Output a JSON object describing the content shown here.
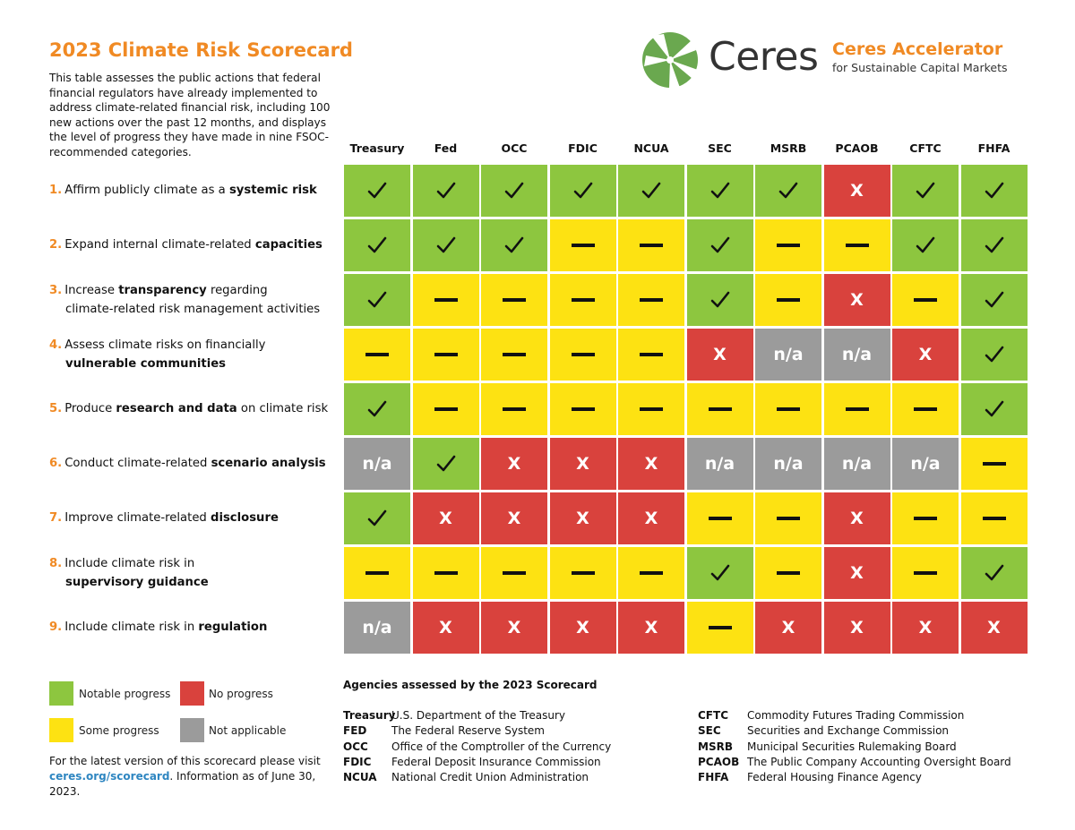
{
  "title": "2023 Climate Risk Scorecard",
  "intro": "This table assesses the public actions that federal financial regulators have already implemented to address climate-related financial risk, including 100 new actions over the past 12 months, and displays the level of progress they have made in nine FSOC-recommended categories.",
  "logo": {
    "word": "Ceres",
    "accelerator_title": "Ceres Accelerator",
    "accelerator_sub": "for Sustainable Capital Markets"
  },
  "colors": {
    "green": "#8dc63f",
    "yellow": "#fde212",
    "red": "#d9423d",
    "gray": "#9b9b9b",
    "orange": "#f08a24",
    "link": "#2e86c1"
  },
  "columns": [
    "Treasury",
    "Fed",
    "OCC",
    "FDIC",
    "NCUA",
    "SEC",
    "MSRB",
    "PCAOB",
    "CFTC",
    "FHFA"
  ],
  "rows": [
    {
      "num": "1.",
      "l1_pre": "Affirm publicly climate as a ",
      "l1_bold": "systemic risk",
      "l1_post": "",
      "l2_pre": "",
      "l2_bold": "",
      "l2_post": "",
      "cells": [
        "g",
        "g",
        "g",
        "g",
        "g",
        "g",
        "g",
        "r",
        "g",
        "g"
      ]
    },
    {
      "num": "2.",
      "l1_pre": "Expand internal climate-related ",
      "l1_bold": "capacities",
      "l1_post": "",
      "l2_pre": "",
      "l2_bold": "",
      "l2_post": "",
      "cells": [
        "g",
        "g",
        "g",
        "y",
        "y",
        "g",
        "y",
        "y",
        "g",
        "g"
      ]
    },
    {
      "num": "3.",
      "l1_pre": "Increase ",
      "l1_bold": "transparency",
      "l1_post": " regarding",
      "l2_pre": "climate-related risk management activities",
      "l2_bold": "",
      "l2_post": "",
      "cells": [
        "g",
        "y",
        "y",
        "y",
        "y",
        "g",
        "y",
        "r",
        "y",
        "g"
      ]
    },
    {
      "num": "4.",
      "l1_pre": "Assess climate risks on financially",
      "l1_bold": "",
      "l1_post": "",
      "l2_pre": "",
      "l2_bold": "vulnerable communities",
      "l2_post": "",
      "cells": [
        "y",
        "y",
        "y",
        "y",
        "y",
        "r",
        "n",
        "n",
        "r",
        "g"
      ]
    },
    {
      "num": "5.",
      "l1_pre": "Produce ",
      "l1_bold": "research and data",
      "l1_post": " on climate risk",
      "l2_pre": "",
      "l2_bold": "",
      "l2_post": "",
      "cells": [
        "g",
        "y",
        "y",
        "y",
        "y",
        "y",
        "y",
        "y",
        "y",
        "g"
      ]
    },
    {
      "num": "6.",
      "l1_pre": "Conduct climate-related ",
      "l1_bold": "scenario analysis",
      "l1_post": "",
      "l2_pre": "",
      "l2_bold": "",
      "l2_post": "",
      "cells": [
        "n",
        "g",
        "r",
        "r",
        "r",
        "n",
        "n",
        "n",
        "n",
        "y"
      ]
    },
    {
      "num": "7.",
      "l1_pre": "Improve climate-related ",
      "l1_bold": "disclosure",
      "l1_post": "",
      "l2_pre": "",
      "l2_bold": "",
      "l2_post": "",
      "cells": [
        "g",
        "r",
        "r",
        "r",
        "r",
        "y",
        "y",
        "r",
        "y",
        "y"
      ]
    },
    {
      "num": "8.",
      "l1_pre": "Include climate risk in",
      "l1_bold": "",
      "l1_post": "",
      "l2_pre": "",
      "l2_bold": "supervisory guidance",
      "l2_post": "",
      "cells": [
        "y",
        "y",
        "y",
        "y",
        "y",
        "g",
        "y",
        "r",
        "y",
        "g"
      ]
    },
    {
      "num": "9.",
      "l1_pre": "Include climate risk in ",
      "l1_bold": "regulation",
      "l1_post": "",
      "l2_pre": "",
      "l2_bold": "",
      "l2_post": "",
      "cells": [
        "n",
        "r",
        "r",
        "r",
        "r",
        "y",
        "r",
        "r",
        "r",
        "r"
      ]
    }
  ],
  "cell_symbols": {
    "r": "X",
    "n": "n/a"
  },
  "legend": {
    "notable": "Notable progress",
    "no": "No progress",
    "some": "Some progress",
    "na": "Not applicable"
  },
  "footer": {
    "text": "For the latest version of this scorecard please visit",
    "link": "ceres.org/scorecard",
    "suffix": ". Information as of June 30, 2023."
  },
  "agencies_title": "Agencies assessed by the 2023 Scorecard",
  "agencies_left": [
    {
      "abbr": "Treasury",
      "name": "U.S. Department of the Treasury"
    },
    {
      "abbr": "FED",
      "name": "The Federal Reserve System"
    },
    {
      "abbr": "OCC",
      "name": "Office of the Comptroller of the Currency"
    },
    {
      "abbr": "FDIC",
      "name": "Federal Deposit Insurance Commission"
    },
    {
      "abbr": "NCUA",
      "name": "National Credit Union Administration"
    }
  ],
  "agencies_right": [
    {
      "abbr": "CFTC",
      "name": "Commodity Futures Trading Commission"
    },
    {
      "abbr": "SEC",
      "name": "Securities and Exchange Commission"
    },
    {
      "abbr": "MSRB",
      "name": "Municipal Securities Rulemaking Board"
    },
    {
      "abbr": "PCAOB",
      "name": "The Public Company Accounting Oversight Board"
    },
    {
      "abbr": "FHFA",
      "name": "Federal Housing Finance Agency"
    }
  ]
}
